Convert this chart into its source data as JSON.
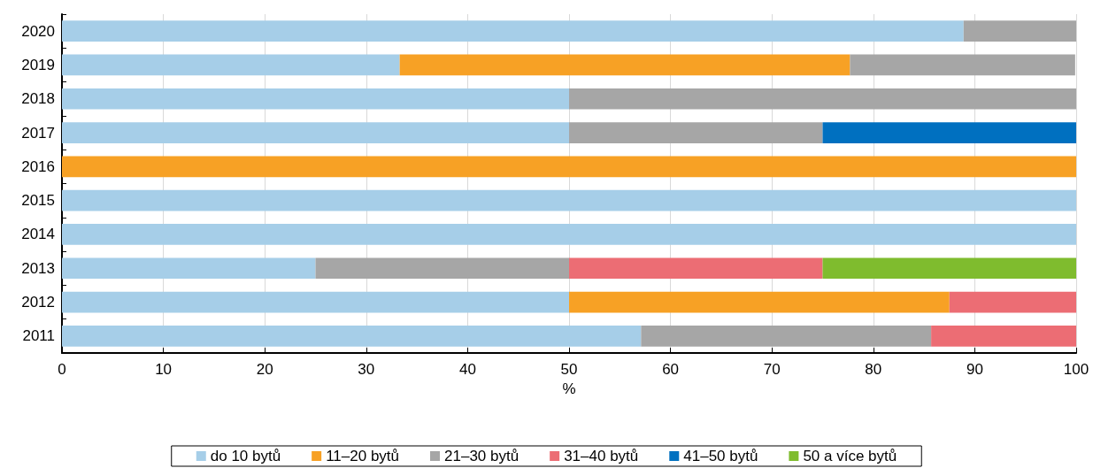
{
  "chart_data": {
    "type": "bar",
    "orientation": "horizontal",
    "stacked": true,
    "xlabel": "%",
    "categories": [
      "2020",
      "2019",
      "2018",
      "2017",
      "2016",
      "2015",
      "2014",
      "2013",
      "2012",
      "2011"
    ],
    "series": [
      {
        "name": "do 10 bytů",
        "color": "#a6cee8",
        "values": [
          88.9,
          33.3,
          50,
          50,
          null,
          100,
          100,
          25,
          50,
          57.1
        ]
      },
      {
        "name": "11–20 bytů",
        "color": "#f7a125",
        "values": [
          null,
          44.4,
          null,
          null,
          100,
          null,
          null,
          null,
          37.5,
          null
        ]
      },
      {
        "name": "21–30 bytů",
        "color": "#a6a6a6",
        "values": [
          11.1,
          22.2,
          50,
          25,
          null,
          null,
          null,
          25,
          null,
          28.6
        ]
      },
      {
        "name": "31–40 bytů",
        "color": "#ec6d74",
        "values": [
          null,
          null,
          null,
          null,
          null,
          null,
          null,
          25,
          12.5,
          14.3
        ]
      },
      {
        "name": "41–50 bytů",
        "color": "#0070c0",
        "values": [
          null,
          null,
          null,
          25,
          null,
          null,
          null,
          null,
          null,
          null
        ]
      },
      {
        "name": "50 a více bytů",
        "color": "#7fbc2e",
        "values": [
          null,
          null,
          null,
          null,
          null,
          null,
          null,
          25,
          null,
          null
        ]
      }
    ],
    "xlim": [
      0,
      100
    ],
    "xticks": [
      0,
      10,
      20,
      30,
      40,
      50,
      60,
      70,
      80,
      90,
      100
    ],
    "grid": "x",
    "legend": "bottom"
  }
}
